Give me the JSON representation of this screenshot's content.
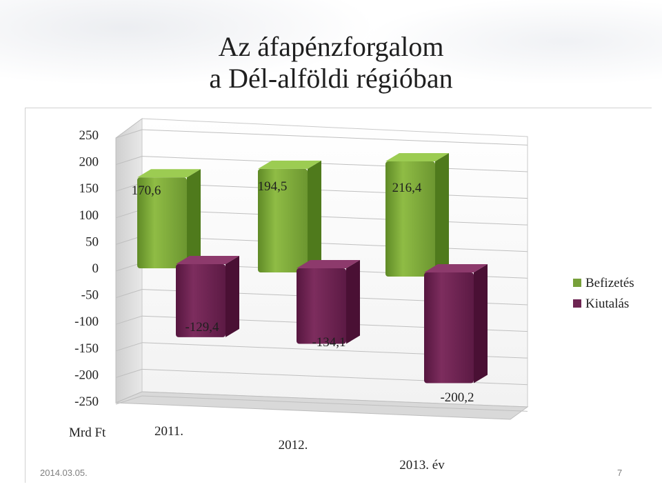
{
  "slide": {
    "title_line1": "Az áfapénzforgalom",
    "title_line2": "a Dél-alföldi régióban",
    "date": "2014.03.05.",
    "page_number": "7"
  },
  "colors": {
    "befizetes": "#77a03a",
    "kiutalas": "#6e2552"
  },
  "chart_data": {
    "type": "bar",
    "categories": [
      "2011.",
      "2012.",
      "2013. év"
    ],
    "series": [
      {
        "name": "Befizetés",
        "values": [
          170.6,
          194.5,
          216.4
        ],
        "labels": [
          "170,6",
          "194,5",
          "216,4"
        ]
      },
      {
        "name": "Kiutalás",
        "values": [
          -129.4,
          -134.1,
          -200.2
        ],
        "labels": [
          "-129,4",
          "-134,1",
          "-200,2"
        ]
      }
    ],
    "yticks": [
      "250",
      "200",
      "150",
      "100",
      "50",
      "0",
      "-50",
      "-100",
      "-150",
      "-200",
      "-250"
    ],
    "ylim": [
      -250,
      250
    ],
    "unit_label": "Mrd Ft",
    "grid": true,
    "legend_position": "right",
    "style": "3d-column"
  }
}
